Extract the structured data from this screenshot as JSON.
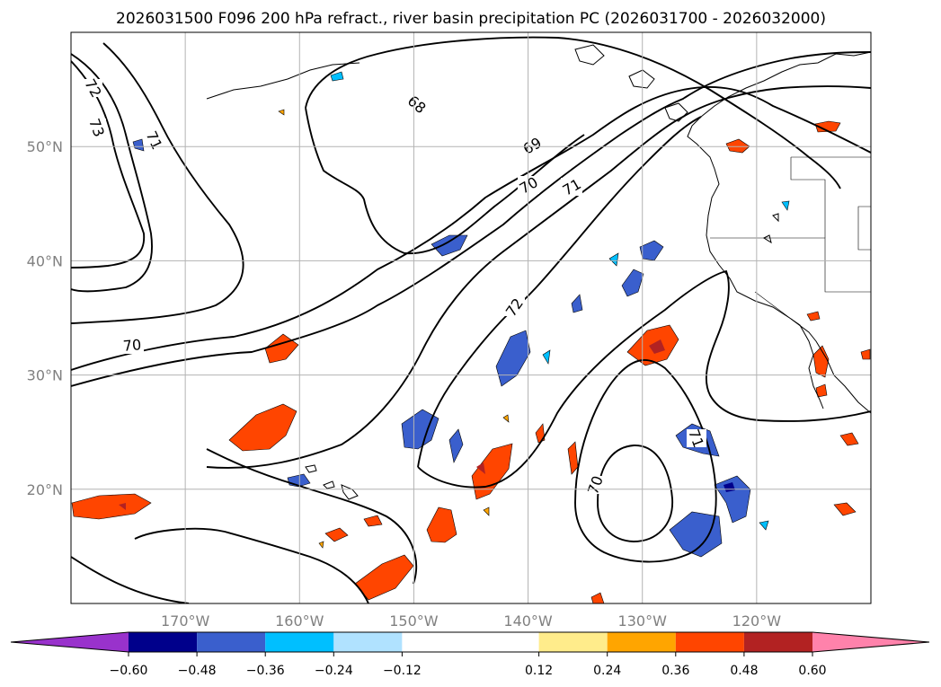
{
  "chart_data": {
    "type": "map",
    "title": "2026031500 F096 200 hPa refract., river basin precipitation PC (2026031700 - 2026032000)",
    "lon_range": [
      -180,
      -110
    ],
    "lat_range": [
      10,
      60
    ],
    "lon_ticks": [
      -170,
      -160,
      -150,
      -140,
      -130,
      -120
    ],
    "lon_tick_labels": [
      "170°W",
      "160°W",
      "150°W",
      "140°W",
      "130°W",
      "120°W"
    ],
    "lat_ticks": [
      20,
      30,
      40,
      50
    ],
    "lat_tick_labels": [
      "20°N",
      "30°N",
      "40°N",
      "50°N"
    ],
    "grid": true,
    "contour_variable": "200 hPa refractivity",
    "contour_labels": [
      "72",
      "73",
      "71",
      "68",
      "69",
      "70",
      "71",
      "72",
      "70",
      "70",
      "71"
    ],
    "colorbar": {
      "boundaries": [
        -0.6,
        -0.48,
        -0.36,
        -0.24,
        -0.12,
        0.12,
        0.24,
        0.36,
        0.48,
        0.6
      ],
      "tick_labels": [
        "−0.60",
        "−0.48",
        "−0.36",
        "−0.24",
        "−0.12",
        "0.12",
        "0.24",
        "0.36",
        "0.48",
        "0.60"
      ],
      "colors": [
        "#9932cc",
        "#00008b",
        "#3a5fcd",
        "#00bfff",
        "#b0e2ff",
        "#ffffff",
        "#ffec8b",
        "#ffa500",
        "#ff4500",
        "#b22222",
        "#ff82ab"
      ],
      "extend": "both"
    }
  }
}
